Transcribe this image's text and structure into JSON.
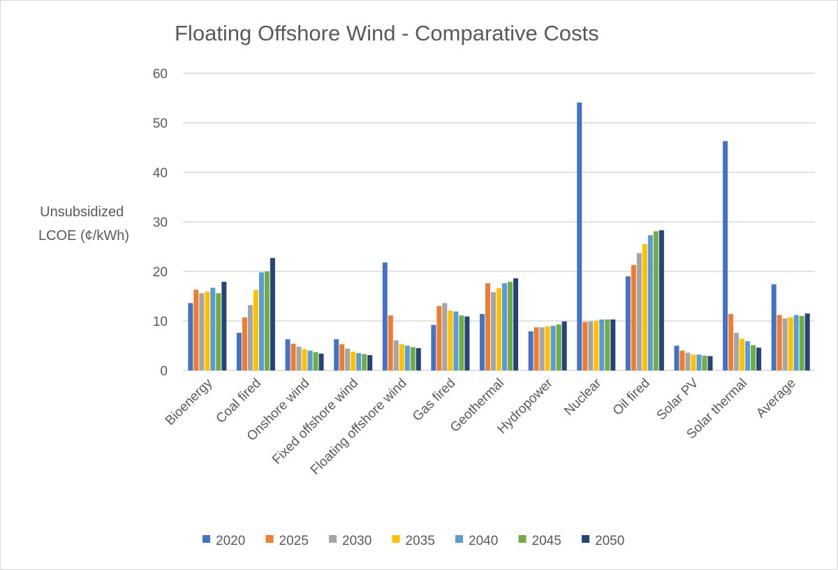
{
  "chart_data": {
    "type": "bar",
    "title": "Floating Offshore Wind - Comparative Costs",
    "ylabel": [
      "Unsubsidized",
      "LCOE (¢/kWh)"
    ],
    "xlabel": "",
    "ylim": [
      0,
      60
    ],
    "yticks": [
      0,
      10,
      20,
      30,
      40,
      50,
      60
    ],
    "grid": true,
    "legend_position": "bottom",
    "categories": [
      "Bioenergy",
      "Coal fired",
      "Onshore wind",
      "Fixed offshore wind",
      "Floating offshore wind",
      "Gas fired",
      "Geothermal",
      "Hydropower",
      "Nuclear",
      "Oil fired",
      "Solar PV",
      "Solar thermal",
      "Average"
    ],
    "series": [
      {
        "name": "2020",
        "color": "#4472C4",
        "values": [
          13.6,
          7.6,
          6.3,
          6.3,
          21.8,
          9.2,
          11.4,
          7.9,
          54.1,
          19.0,
          5.0,
          46.3,
          17.4
        ]
      },
      {
        "name": "2025",
        "color": "#ED7D31",
        "values": [
          16.3,
          10.7,
          5.4,
          5.3,
          11.1,
          13.0,
          17.6,
          8.7,
          9.8,
          21.3,
          4.0,
          11.4,
          11.2
        ]
      },
      {
        "name": "2030",
        "color": "#A5A5A5",
        "values": [
          15.6,
          13.2,
          4.8,
          4.4,
          6.1,
          13.6,
          15.8,
          8.7,
          9.9,
          23.7,
          3.6,
          7.6,
          10.5
        ]
      },
      {
        "name": "2035",
        "color": "#FFC000",
        "values": [
          15.9,
          16.2,
          4.3,
          3.8,
          5.3,
          12.1,
          16.6,
          8.9,
          10.0,
          25.5,
          3.2,
          6.4,
          10.7
        ]
      },
      {
        "name": "2040",
        "color": "#5B9BD5",
        "values": [
          16.7,
          19.8,
          4.0,
          3.5,
          5.0,
          11.9,
          17.6,
          9.0,
          10.3,
          27.3,
          3.2,
          5.9,
          11.2
        ]
      },
      {
        "name": "2045",
        "color": "#70AD47",
        "values": [
          15.6,
          20.0,
          3.7,
          3.3,
          4.7,
          11.1,
          17.9,
          9.3,
          10.3,
          28.1,
          3.0,
          5.1,
          11.0
        ]
      },
      {
        "name": "2050",
        "color": "#264478",
        "values": [
          17.9,
          22.7,
          3.4,
          3.1,
          4.5,
          10.9,
          18.6,
          9.9,
          10.3,
          28.3,
          2.9,
          4.6,
          11.5
        ]
      }
    ]
  }
}
